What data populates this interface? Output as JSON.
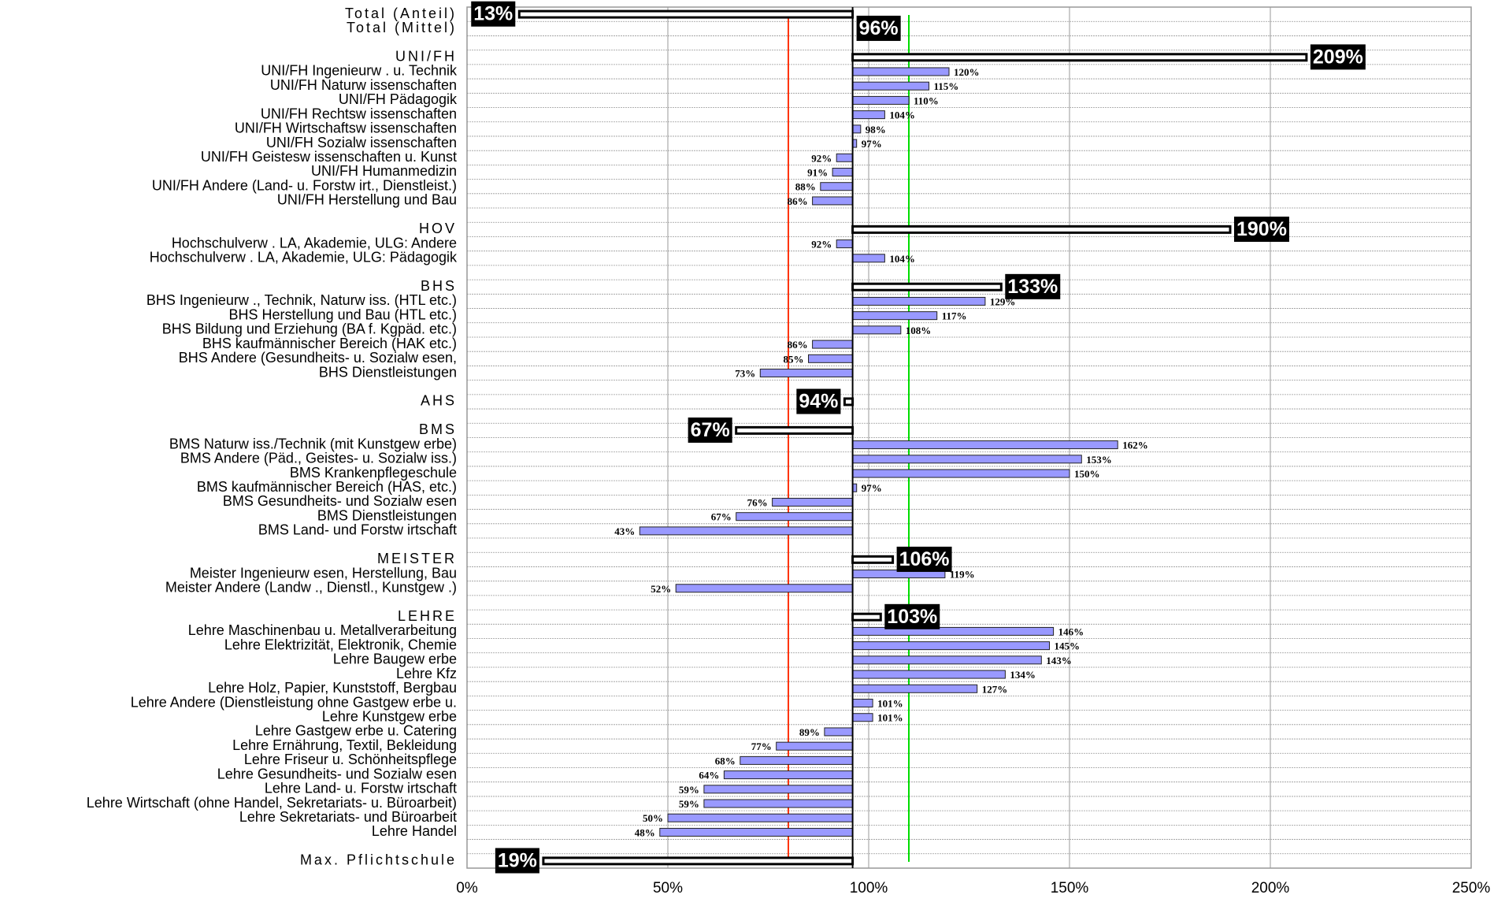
{
  "chart_data": {
    "type": "bar",
    "orientation": "horizontal",
    "categories": [
      "Total (Anteil)",
      "Total (Mittel)",
      null,
      "UNI/FH",
      "UNI/FH Ingenieurw . u. Technik",
      "UNI/FH Naturw issenschaften",
      "UNI/FH Pädagogik",
      "UNI/FH Rechtsw issenschaften",
      "UNI/FH Wirtschaftsw issenschaften",
      "UNI/FH Sozialw issenschaften",
      "UNI/FH Geistesw issenschaften u. Kunst",
      "UNI/FH Humanmedizin",
      "UNI/FH Andere (Land- u. Forstw irt., Dienstleist.)",
      "UNI/FH Herstellung und Bau",
      null,
      "HOV",
      "Hochschulverw . LA, Akademie, ULG: Andere",
      "Hochschulverw . LA, Akademie, ULG: Pädagogik",
      null,
      "BHS",
      "BHS Ingenieurw ., Technik, Naturw iss. (HTL etc.)",
      "BHS Herstellung und Bau (HTL etc.)",
      "BHS Bildung und Erziehung (BA f. Kgpäd. etc.)",
      "BHS kaufmännischer Bereich (HAK etc.)",
      "BHS Andere (Gesundheits- u. Sozialw esen,",
      "BHS Dienstleistungen",
      null,
      "AHS",
      null,
      "BMS",
      "BMS Naturw iss./Technik (mit Kunstgew erbe)",
      "BMS Andere (Päd., Geistes- u. Sozialw iss.)",
      "BMS Krankenpflegeschule",
      "BMS kaufmännischer Bereich (HAS, etc.)",
      "BMS Gesundheits- und Sozialw esen",
      "BMS Dienstleistungen",
      "BMS Land- und Forstw irtschaft",
      null,
      "MEISTER",
      "Meister Ingenieurw esen, Herstellung, Bau",
      "Meister Andere (Landw ., Dienstl., Kunstgew .)",
      null,
      "LEHRE",
      "Lehre Maschinenbau u. Metallverarbeitung",
      "Lehre Elektrizität, Elektronik, Chemie",
      "Lehre Baugew erbe",
      "Lehre Kfz",
      "Lehre Holz, Papier, Kunststoff, Bergbau",
      "Lehre Andere (Dienstleistung ohne Gastgew erbe u.",
      "Lehre Kunstgew erbe",
      "Lehre Gastgew erbe u. Catering",
      "Lehre Ernährung, Textil, Bekleidung",
      "Lehre Friseur u. Schönheitspflege",
      "Lehre Gesundheits- und Sozialw esen",
      "Lehre Land- u. Forstw irtschaft",
      "Lehre Wirtschaft (ohne Handel, Sekretariats- u. Büroarbeit)",
      "Lehre Sekretariats- und Büroarbeit",
      "Lehre Handel",
      null,
      "Max. Pflichtschule"
    ],
    "values": [
      13,
      96,
      null,
      209,
      120,
      115,
      110,
      104,
      98,
      97,
      92,
      91,
      88,
      86,
      null,
      190,
      92,
      104,
      null,
      133,
      129,
      117,
      108,
      86,
      85,
      73,
      null,
      94,
      null,
      67,
      162,
      153,
      150,
      97,
      76,
      67,
      43,
      null,
      106,
      119,
      52,
      null,
      103,
      146,
      145,
      143,
      134,
      127,
      101,
      101,
      89,
      77,
      68,
      64,
      59,
      59,
      50,
      48,
      null,
      19
    ],
    "value_labels": [
      "13%",
      "96%",
      null,
      "209%",
      "120%",
      "115%",
      "110%",
      "104%",
      "98%",
      "97%",
      "92%",
      "91%",
      "88%",
      "86%",
      null,
      "190%",
      "92%",
      "104%",
      null,
      "133%",
      "129%",
      "117%",
      "108%",
      "86%",
      "85%",
      "73%",
      null,
      "94%",
      null,
      "67%",
      "162%",
      "153%",
      "150%",
      "97%",
      "76%",
      "67%",
      "43%",
      null,
      "106%",
      "119%",
      "52%",
      null,
      "103%",
      "146%",
      "145%",
      "143%",
      "134%",
      "127%",
      "101%",
      "101%",
      "89%",
      "77%",
      "68%",
      "64%",
      "59%",
      "59%",
      "50%",
      "48%",
      null,
      "19%"
    ],
    "summary": [
      true,
      true,
      false,
      true,
      false,
      false,
      false,
      false,
      false,
      false,
      false,
      false,
      false,
      false,
      false,
      true,
      false,
      false,
      false,
      true,
      false,
      false,
      false,
      false,
      false,
      false,
      false,
      true,
      false,
      true,
      false,
      false,
      false,
      false,
      false,
      false,
      false,
      false,
      true,
      false,
      false,
      false,
      true,
      false,
      false,
      false,
      false,
      false,
      false,
      false,
      false,
      false,
      false,
      false,
      false,
      false,
      false,
      false,
      false,
      true
    ],
    "bar_drawn": [
      true,
      false,
      false,
      true,
      true,
      true,
      true,
      true,
      true,
      true,
      true,
      true,
      true,
      true,
      false,
      true,
      true,
      true,
      false,
      true,
      true,
      true,
      true,
      true,
      true,
      true,
      false,
      true,
      false,
      true,
      true,
      true,
      true,
      true,
      true,
      true,
      true,
      false,
      true,
      true,
      true,
      false,
      true,
      true,
      true,
      true,
      true,
      true,
      true,
      true,
      true,
      true,
      true,
      true,
      true,
      true,
      true,
      true,
      false,
      true
    ],
    "baseline": 96,
    "color": "#9999ff",
    "reference_lines": [
      {
        "value": 80,
        "color": "#ff3300"
      },
      {
        "value": 110,
        "color": "#00dd00"
      }
    ],
    "xlim": [
      0,
      250
    ],
    "xticks": [
      {
        "value": 0,
        "label": "0%"
      },
      {
        "value": 50,
        "label": "50%"
      },
      {
        "value": 100,
        "label": "100%"
      },
      {
        "value": 150,
        "label": "150%"
      },
      {
        "value": 200,
        "label": "200%"
      },
      {
        "value": 250,
        "label": "250%"
      }
    ],
    "grid": true
  }
}
